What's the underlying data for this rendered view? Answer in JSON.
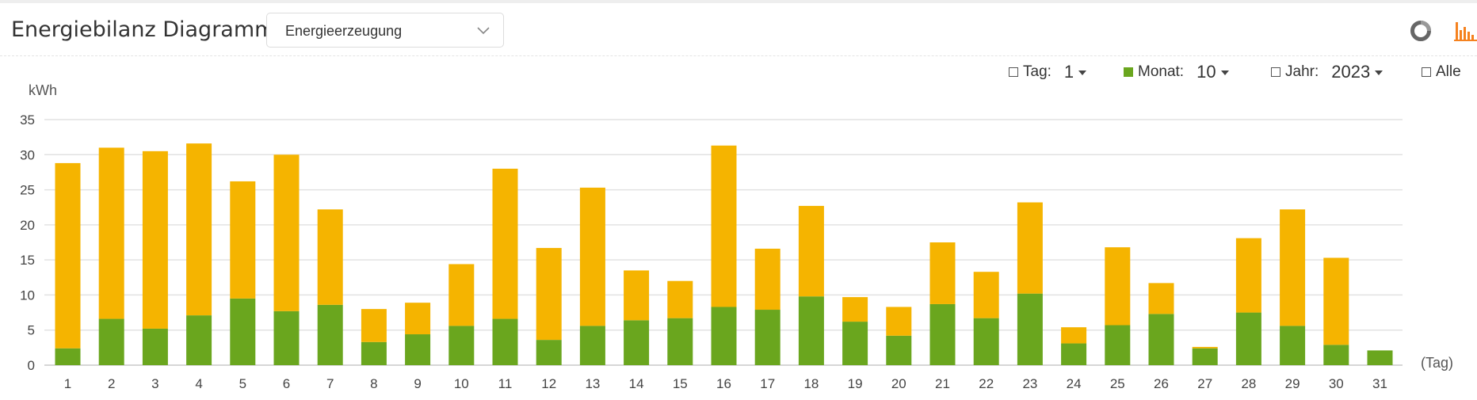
{
  "header": {
    "title": "Energiebilanz Diagramm",
    "select_value": "Energieerzeugung"
  },
  "filters": {
    "day_label": "Tag:",
    "day_value": "1",
    "month_label": "Monat:",
    "month_value": "10",
    "year_label": "Jahr:",
    "year_value": "2023",
    "all_label": "Alle"
  },
  "colors": {
    "series1": "#6aa61e",
    "series2": "#f5b400",
    "accent": "#f5821f"
  },
  "icons": {
    "donut": "donut-chart-icon",
    "bar": "bar-chart-icon"
  },
  "chart_data": {
    "type": "bar",
    "stacked": true,
    "ylabel": "kWh",
    "xlabel": "(Tag)",
    "ylim": [
      0,
      35
    ],
    "yticks": [
      0,
      5,
      10,
      15,
      20,
      25,
      30,
      35
    ],
    "grid": true,
    "categories": [
      "1",
      "2",
      "3",
      "4",
      "5",
      "6",
      "7",
      "8",
      "9",
      "10",
      "11",
      "12",
      "13",
      "14",
      "15",
      "16",
      "17",
      "18",
      "19",
      "20",
      "21",
      "22",
      "23",
      "24",
      "25",
      "26",
      "27",
      "28",
      "29",
      "30",
      "31"
    ],
    "series": [
      {
        "color": "#6aa61e",
        "values": [
          2.4,
          6.6,
          5.2,
          7.1,
          9.5,
          7.7,
          8.6,
          3.3,
          4.4,
          5.6,
          6.6,
          3.6,
          5.6,
          6.4,
          6.7,
          8.3,
          7.9,
          9.8,
          6.2,
          4.2,
          8.7,
          6.7,
          10.2,
          3.1,
          5.7,
          7.3,
          2.4,
          7.5,
          5.6,
          2.9,
          2.1
        ]
      },
      {
        "color": "#f5b400",
        "values": [
          26.4,
          24.4,
          25.3,
          24.5,
          16.7,
          22.3,
          13.6,
          4.7,
          4.5,
          8.8,
          21.4,
          13.1,
          19.7,
          7.1,
          5.3,
          23.0,
          8.7,
          12.9,
          3.5,
          4.1,
          8.8,
          6.6,
          13.0,
          2.3,
          11.1,
          4.4,
          0.2,
          10.6,
          16.6,
          12.4,
          0
        ]
      }
    ]
  }
}
